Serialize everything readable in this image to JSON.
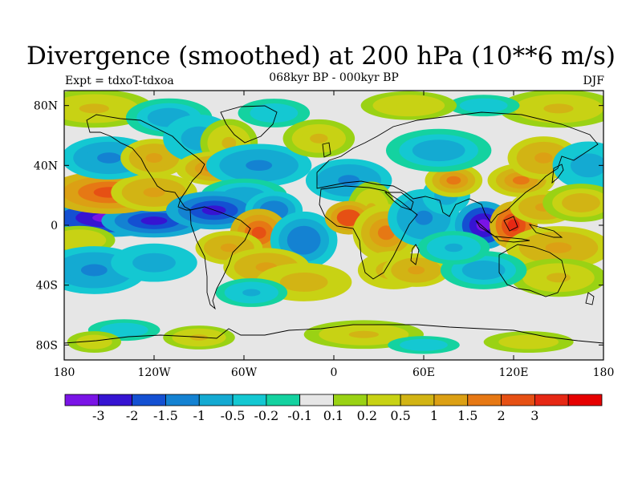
{
  "header": {
    "title": "Divergence (smoothed) at 200 hPa (10**6 m/s)",
    "subtitle": "068kyr BP - 000kyr BP",
    "left_label": "Expt = tdxoT-tdxoa",
    "right_label": "DJF"
  },
  "axes": {
    "x_ticks": [
      {
        "value": -180,
        "label": "180"
      },
      {
        "value": -120,
        "label": "120W"
      },
      {
        "value": -60,
        "label": "60W"
      },
      {
        "value": 0,
        "label": "0"
      },
      {
        "value": 60,
        "label": "60E"
      },
      {
        "value": 120,
        "label": "120E"
      },
      {
        "value": 180,
        "label": "180"
      }
    ],
    "y_ticks": [
      {
        "value": 80,
        "label": "80N"
      },
      {
        "value": 40,
        "label": "40N"
      },
      {
        "value": 0,
        "label": "0"
      },
      {
        "value": -40,
        "label": "40S"
      },
      {
        "value": -80,
        "label": "80S"
      }
    ],
    "lon_range": [
      -180,
      180
    ],
    "lat_range": [
      -90,
      90
    ]
  },
  "colorbar": {
    "colors": [
      "#7a14e6",
      "#3614d2",
      "#1450d2",
      "#1482d2",
      "#14aad2",
      "#14c8d2",
      "#14d2a0",
      "#e6e6e6",
      "#9ad214",
      "#c8d214",
      "#d2b414",
      "#dca014",
      "#e67814",
      "#e65014",
      "#e62814",
      "#e60000"
    ],
    "labels": [
      "-3",
      "-2",
      "-1.5",
      "-1",
      "-0.5",
      "-0.2",
      "-0.1",
      "0.1",
      "0.2",
      "0.5",
      "1",
      "1.5",
      "2",
      "3"
    ]
  },
  "field_blobs": [
    {
      "lon": -150,
      "lat": 5,
      "rlon": 28,
      "rlat": 8,
      "v": -3.5
    },
    {
      "lon": -120,
      "lat": 3,
      "rlon": 22,
      "rlat": 7,
      "v": -2.2
    },
    {
      "lon": -150,
      "lat": 22,
      "rlon": 26,
      "rlat": 9,
      "v": 2.0
    },
    {
      "lon": -120,
      "lat": 22,
      "rlon": 18,
      "rlat": 8,
      "v": 1.2
    },
    {
      "lon": -170,
      "lat": -10,
      "rlon": 15,
      "rlat": 6,
      "v": 0.4
    },
    {
      "lon": -160,
      "lat": -30,
      "rlon": 22,
      "rlat": 10,
      "v": -1.2
    },
    {
      "lon": -120,
      "lat": -25,
      "rlon": 18,
      "rlat": 8,
      "v": -1.0
    },
    {
      "lon": -150,
      "lat": 45,
      "rlon": 20,
      "rlat": 9,
      "v": -1.3
    },
    {
      "lon": -120,
      "lat": 45,
      "rlon": 14,
      "rlat": 8,
      "v": 1.1
    },
    {
      "lon": -160,
      "lat": 78,
      "rlon": 25,
      "rlat": 8,
      "v": 0.6
    },
    {
      "lon": -110,
      "lat": 72,
      "rlon": 18,
      "rlat": 8,
      "v": -0.7
    },
    {
      "lon": -90,
      "lat": 58,
      "rlon": 15,
      "rlat": 10,
      "v": -1.0
    },
    {
      "lon": -70,
      "lat": 55,
      "rlon": 12,
      "rlat": 10,
      "v": 0.6
    },
    {
      "lon": -80,
      "lat": 38,
      "rlon": 16,
      "rlat": 7,
      "v": 1.5
    },
    {
      "lon": -50,
      "lat": 40,
      "rlon": 22,
      "rlat": 9,
      "v": -1.3
    },
    {
      "lon": -60,
      "lat": 20,
      "rlon": 18,
      "rlat": 7,
      "v": -0.8
    },
    {
      "lon": -80,
      "lat": 10,
      "rlon": 20,
      "rlat": 8,
      "v": -2.2
    },
    {
      "lon": -40,
      "lat": 10,
      "rlon": 12,
      "rlat": 8,
      "v": -1.5
    },
    {
      "lon": -50,
      "lat": -5,
      "rlon": 12,
      "rlat": 10,
      "v": 2.5
    },
    {
      "lon": -20,
      "lat": -10,
      "rlon": 14,
      "rlat": 12,
      "v": -1.5
    },
    {
      "lon": -70,
      "lat": -15,
      "rlon": 14,
      "rlat": 7,
      "v": 1.0
    },
    {
      "lon": -45,
      "lat": -28,
      "rlon": 18,
      "rlat": 8,
      "v": 1.0
    },
    {
      "lon": -20,
      "lat": -38,
      "rlon": 20,
      "rlat": 8,
      "v": 0.8
    },
    {
      "lon": -55,
      "lat": -45,
      "rlon": 15,
      "rlat": 6,
      "v": -0.6
    },
    {
      "lon": -40,
      "lat": 75,
      "rlon": 20,
      "rlat": 8,
      "v": -0.3
    },
    {
      "lon": -10,
      "lat": 58,
      "rlon": 15,
      "rlat": 8,
      "v": 0.5
    },
    {
      "lon": 10,
      "lat": 30,
      "rlon": 18,
      "rlat": 9,
      "v": -1.1
    },
    {
      "lon": 25,
      "lat": 10,
      "rlon": 10,
      "rlat": 12,
      "v": 0.5
    },
    {
      "lon": 10,
      "lat": 5,
      "rlon": 10,
      "rlat": 7,
      "v": 2.8
    },
    {
      "lon": 35,
      "lat": -5,
      "rlon": 14,
      "rlat": 12,
      "v": 1.5
    },
    {
      "lon": 40,
      "lat": -30,
      "rlon": 15,
      "rlat": 8,
      "v": 0.8
    },
    {
      "lon": 55,
      "lat": -30,
      "rlon": 14,
      "rlat": 7,
      "v": 1.2
    },
    {
      "lon": 60,
      "lat": 5,
      "rlon": 15,
      "rlat": 12,
      "v": -1.2
    },
    {
      "lon": 75,
      "lat": 20,
      "rlon": 10,
      "rlat": 8,
      "v": -1.0
    },
    {
      "lon": 80,
      "lat": 30,
      "rlon": 12,
      "rlat": 7,
      "v": 1.6
    },
    {
      "lon": 70,
      "lat": 50,
      "rlon": 22,
      "rlat": 9,
      "v": -0.8
    },
    {
      "lon": 100,
      "lat": 0,
      "rlon": 12,
      "rlat": 10,
      "v": -3.3
    },
    {
      "lon": 120,
      "lat": 0,
      "rlon": 10,
      "rlat": 10,
      "v": 3.5
    },
    {
      "lon": 140,
      "lat": 12,
      "rlon": 14,
      "rlat": 7,
      "v": 1.2
    },
    {
      "lon": 125,
      "lat": 30,
      "rlon": 14,
      "rlat": 7,
      "v": 1.8
    },
    {
      "lon": 140,
      "lat": 45,
      "rlon": 15,
      "rlat": 9,
      "v": 1.0
    },
    {
      "lon": 170,
      "lat": 40,
      "rlon": 15,
      "rlat": 10,
      "v": -1.0
    },
    {
      "lon": 165,
      "lat": 15,
      "rlon": 16,
      "rlat": 8,
      "v": 0.7
    },
    {
      "lon": 150,
      "lat": -15,
      "rlon": 22,
      "rlat": 9,
      "v": 1.0
    },
    {
      "lon": 150,
      "lat": -35,
      "rlon": 20,
      "rlat": 8,
      "v": 0.5
    },
    {
      "lon": 100,
      "lat": -30,
      "rlon": 18,
      "rlat": 8,
      "v": -0.7
    },
    {
      "lon": 80,
      "lat": -15,
      "rlon": 15,
      "rlat": 7,
      "v": -0.6
    },
    {
      "lon": 150,
      "lat": 78,
      "rlon": 25,
      "rlat": 8,
      "v": 0.5
    },
    {
      "lon": 100,
      "lat": 80,
      "rlon": 20,
      "rlat": 6,
      "v": -0.3
    },
    {
      "lon": 50,
      "lat": 80,
      "rlon": 20,
      "rlat": 6,
      "v": 0.4
    },
    {
      "lon": -140,
      "lat": -70,
      "rlon": 20,
      "rlat": 6,
      "v": -0.4
    },
    {
      "lon": -90,
      "lat": -75,
      "rlon": 15,
      "rlat": 5,
      "v": 0.5
    },
    {
      "lon": 20,
      "lat": -73,
      "rlon": 25,
      "rlat": 6,
      "v": 0.6
    },
    {
      "lon": 60,
      "lat": -80,
      "rlon": 20,
      "rlat": 5,
      "v": -0.3
    },
    {
      "lon": 130,
      "lat": -78,
      "rlon": 25,
      "rlat": 6,
      "v": 0.3
    },
    {
      "lon": -160,
      "lat": -78,
      "rlon": 15,
      "rlat": 6,
      "v": 0.3
    }
  ]
}
